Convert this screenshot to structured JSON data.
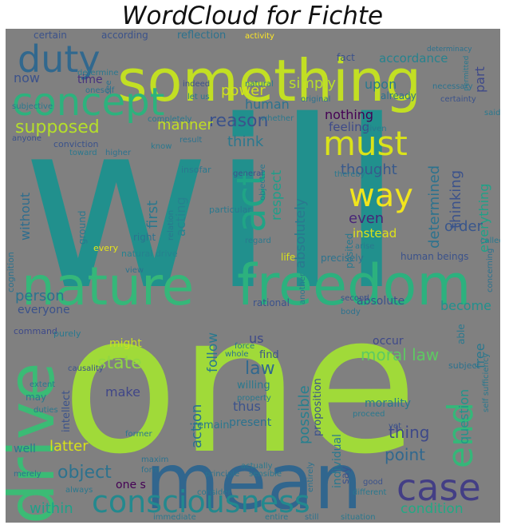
{
  "title": "WordCloud for  Fichte",
  "background_color": "#808080",
  "words": [
    {
      "text": "will",
      "color": "#21908d"
    },
    {
      "text": "one",
      "color": "#a0da39"
    },
    {
      "text": "something",
      "color": "#c2df23"
    },
    {
      "text": "nature",
      "color": "#35b779"
    },
    {
      "text": "freedom",
      "color": "#2cb17e"
    },
    {
      "text": "mean",
      "color": "#31668e"
    },
    {
      "text": "drive",
      "color": "#3bbb75"
    },
    {
      "text": "concept",
      "color": "#2db27d"
    },
    {
      "text": "duty",
      "color": "#31688e"
    },
    {
      "text": "must",
      "color": "#dae319"
    },
    {
      "text": "way",
      "color": "#f1e51d"
    },
    {
      "text": "act",
      "color": "#20a486"
    },
    {
      "text": "case",
      "color": "#433e85"
    },
    {
      "text": "consciousness",
      "color": "#23898e"
    },
    {
      "text": "end",
      "color": "#35b779"
    },
    {
      "text": "reason",
      "color": "#3b528b"
    },
    {
      "text": "supposed",
      "color": "#b5de2b"
    },
    {
      "text": "moral law",
      "color": "#5ec962"
    },
    {
      "text": "object",
      "color": "#2c728e"
    },
    {
      "text": "law",
      "color": "#31688e"
    },
    {
      "text": "state",
      "color": "#90d743"
    },
    {
      "text": "thing",
      "color": "#3e4989"
    },
    {
      "text": "point",
      "color": "#31688e"
    },
    {
      "text": "condition",
      "color": "#22a884"
    },
    {
      "text": "within",
      "color": "#1fa088"
    },
    {
      "text": "latter",
      "color": "#d8e219"
    },
    {
      "text": "person",
      "color": "#2c728e"
    },
    {
      "text": "power",
      "color": "#d0e11c"
    },
    {
      "text": "simply",
      "color": "#b8de29"
    },
    {
      "text": "manner",
      "color": "#c2df23"
    },
    {
      "text": "thought",
      "color": "#38598c"
    },
    {
      "text": "think",
      "color": "#2a788e"
    },
    {
      "text": "first",
      "color": "#2a788e"
    },
    {
      "text": "acting",
      "color": "#26828e"
    },
    {
      "text": "respect",
      "color": "#1f9e89"
    },
    {
      "text": "absolutely",
      "color": "#2a788e"
    },
    {
      "text": "determined",
      "color": "#2c728e"
    },
    {
      "text": "thinking",
      "color": "#3b528b"
    },
    {
      "text": "everything",
      "color": "#1fa187"
    },
    {
      "text": "even",
      "color": "#482677"
    },
    {
      "text": "instead",
      "color": "#dde318"
    },
    {
      "text": "order",
      "color": "#39568c"
    },
    {
      "text": "human",
      "color": "#2c728e"
    },
    {
      "text": "upon",
      "color": "#2a788e"
    },
    {
      "text": "part",
      "color": "#3e4989"
    },
    {
      "text": "nothing",
      "color": "#440154"
    },
    {
      "text": "feeling",
      "color": "#3e4a89"
    },
    {
      "text": "without",
      "color": "#2e6d8e"
    },
    {
      "text": "now",
      "color": "#3b528b"
    },
    {
      "text": "time",
      "color": "#46337e"
    },
    {
      "text": "fact",
      "color": "#3b528b"
    },
    {
      "text": "accordance",
      "color": "#26828e"
    },
    {
      "text": "certain",
      "color": "#3b528b"
    },
    {
      "text": "according",
      "color": "#3b528b"
    },
    {
      "text": "reflection",
      "color": "#2c728e"
    },
    {
      "text": "action",
      "color": "#2c728e"
    },
    {
      "text": "follow",
      "color": "#2a788e"
    },
    {
      "text": "possible",
      "color": "#277f8e"
    },
    {
      "text": "question",
      "color": "#1f958b"
    },
    {
      "text": "free",
      "color": "#2a788e"
    },
    {
      "text": "become",
      "color": "#21908d"
    },
    {
      "text": "absolute",
      "color": "#3b528b"
    },
    {
      "text": "might",
      "color": "#c8e020"
    },
    {
      "text": "us",
      "color": "#3e4989"
    },
    {
      "text": "find",
      "color": "#3b528b"
    },
    {
      "text": "make",
      "color": "#404688"
    },
    {
      "text": "willing",
      "color": "#2a788e"
    },
    {
      "text": "thus",
      "color": "#3b528b"
    },
    {
      "text": "present",
      "color": "#2c728e"
    },
    {
      "text": "occur",
      "color": "#3e4989"
    },
    {
      "text": "individual",
      "color": "#2a788e"
    },
    {
      "text": "proposition",
      "color": "#3b528b"
    },
    {
      "text": "morality",
      "color": "#2a788e"
    },
    {
      "text": "intellect",
      "color": "#3b528b"
    },
    {
      "text": "life",
      "color": "#d8e219"
    },
    {
      "text": "everyone",
      "color": "#3b528b"
    },
    {
      "text": "precisely",
      "color": "#2c728e"
    },
    {
      "text": "human beings",
      "color": "#3b528b"
    },
    {
      "text": "rational",
      "color": "#3b528b"
    },
    {
      "text": "posited",
      "color": "#2a788e"
    },
    {
      "text": "remain",
      "color": "#2a788e"
    },
    {
      "text": "one s",
      "color": "#440154"
    },
    {
      "text": "say",
      "color": "#3b528b"
    },
    {
      "text": "able",
      "color": "#2a788e"
    },
    {
      "text": "every",
      "color": "#e5e419"
    },
    {
      "text": "right",
      "color": "#2c728e"
    },
    {
      "text": "ground",
      "color": "#2a788e"
    },
    {
      "text": "natural drive",
      "color": "#26828e"
    },
    {
      "text": "conviction",
      "color": "#3b528b"
    },
    {
      "text": "cognition",
      "color": "#2c728e"
    },
    {
      "text": "command",
      "color": "#3e4989"
    },
    {
      "text": "purely",
      "color": "#2a788e"
    },
    {
      "text": "may",
      "color": "#2a788e"
    },
    {
      "text": "well",
      "color": "#2a788e"
    },
    {
      "text": "subject",
      "color": "#2c728e"
    },
    {
      "text": "activity",
      "color": "#fde725"
    },
    {
      "text": "already",
      "color": "#2c728e"
    },
    {
      "text": "indeed",
      "color": "#3b528b"
    },
    {
      "text": "natural",
      "color": "#2a788e"
    },
    {
      "text": "whether",
      "color": "#2a788e"
    },
    {
      "text": "original",
      "color": "#2c728e"
    },
    {
      "text": "let us",
      "color": "#2a788e"
    },
    {
      "text": "given",
      "color": "#2a788e"
    },
    {
      "text": "necessary",
      "color": "#2c728e"
    },
    {
      "text": "certainty",
      "color": "#3b528b"
    },
    {
      "text": "particular",
      "color": "#2a788e"
    },
    {
      "text": "general",
      "color": "#3b528b"
    },
    {
      "text": "thereby",
      "color": "#2a788e"
    },
    {
      "text": "objective",
      "color": "#2a788e"
    },
    {
      "text": "insofar",
      "color": "#2a788e"
    },
    {
      "text": "higher",
      "color": "#2c728e"
    },
    {
      "text": "completely",
      "color": "#2a788e"
    },
    {
      "text": "determine",
      "color": "#2a788e"
    },
    {
      "text": "oneself",
      "color": "#2c728e"
    },
    {
      "text": "subjective",
      "color": "#2a788e"
    },
    {
      "text": "anyone",
      "color": "#3b528b"
    },
    {
      "text": "see",
      "color": "#2c728e"
    },
    {
      "text": "know",
      "color": "#2a788e"
    },
    {
      "text": "result",
      "color": "#2c728e"
    },
    {
      "text": "toward",
      "color": "#2a788e"
    },
    {
      "text": "regard",
      "color": "#2a788e"
    },
    {
      "text": "arise",
      "color": "#2a788e"
    },
    {
      "text": "second",
      "color": "#3b528b"
    },
    {
      "text": "another",
      "color": "#2a788e"
    },
    {
      "text": "body",
      "color": "#2c728e"
    },
    {
      "text": "causality",
      "color": "#3b528b"
    },
    {
      "text": "force",
      "color": "#2a788e"
    },
    {
      "text": "whole",
      "color": "#2c728e"
    },
    {
      "text": "property",
      "color": "#2a788e"
    },
    {
      "text": "former",
      "color": "#2a788e"
    },
    {
      "text": "maxim",
      "color": "#2c728e"
    },
    {
      "text": "proceed",
      "color": "#2a788e"
    },
    {
      "text": "yet",
      "color": "#3b528b"
    },
    {
      "text": "actually",
      "color": "#2a788e"
    },
    {
      "text": "principle",
      "color": "#2c728e"
    },
    {
      "text": "sensible",
      "color": "#2a788e"
    },
    {
      "text": "consider",
      "color": "#2a788e"
    },
    {
      "text": "entirely",
      "color": "#2c728e"
    },
    {
      "text": "good",
      "color": "#3b528b"
    },
    {
      "text": "different",
      "color": "#2a788e"
    },
    {
      "text": "always",
      "color": "#2a788e"
    },
    {
      "text": "form",
      "color": "#2c728e"
    },
    {
      "text": "immediate",
      "color": "#2a788e"
    },
    {
      "text": "entire",
      "color": "#2a788e"
    },
    {
      "text": "still",
      "color": "#2c728e"
    },
    {
      "text": "situation",
      "color": "#2a788e"
    },
    {
      "text": "self sufficiency",
      "color": "#2a788e"
    },
    {
      "text": "concerning",
      "color": "#2c728e"
    },
    {
      "text": "called",
      "color": "#2a788e"
    },
    {
      "text": "relation",
      "color": "#2a788e"
    },
    {
      "text": "view",
      "color": "#2c728e"
    },
    {
      "text": "duties",
      "color": "#2a788e"
    },
    {
      "text": "extent",
      "color": "#2a788e"
    },
    {
      "text": "merely",
      "color": "#2c728e"
    },
    {
      "text": "said",
      "color": "#2a788e"
    },
    {
      "text": "determinacy",
      "color": "#2c728e"
    },
    {
      "text": "permitted",
      "color": "#2a788e"
    }
  ]
}
